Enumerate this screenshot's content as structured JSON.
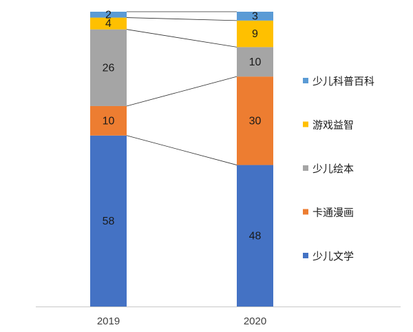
{
  "chart_data": {
    "type": "bar",
    "stacked": true,
    "categories": [
      "2019",
      "2020"
    ],
    "series": [
      {
        "name": "少儿文学",
        "values": [
          58,
          48
        ],
        "color": "#4472C4"
      },
      {
        "name": "卡通漫画",
        "values": [
          10,
          30
        ],
        "color": "#ED7D31"
      },
      {
        "name": "少儿绘本",
        "values": [
          26,
          10
        ],
        "color": "#A5A5A5"
      },
      {
        "name": "游戏益智",
        "values": [
          4,
          9
        ],
        "color": "#FFC000"
      },
      {
        "name": "少儿科普百科",
        "values": [
          2,
          3
        ],
        "color": "#5B9BD5"
      }
    ],
    "total": 100,
    "legend_position": "right",
    "legend_order": "reversed",
    "connector_lines": true,
    "grid": false,
    "data_labels": true
  }
}
